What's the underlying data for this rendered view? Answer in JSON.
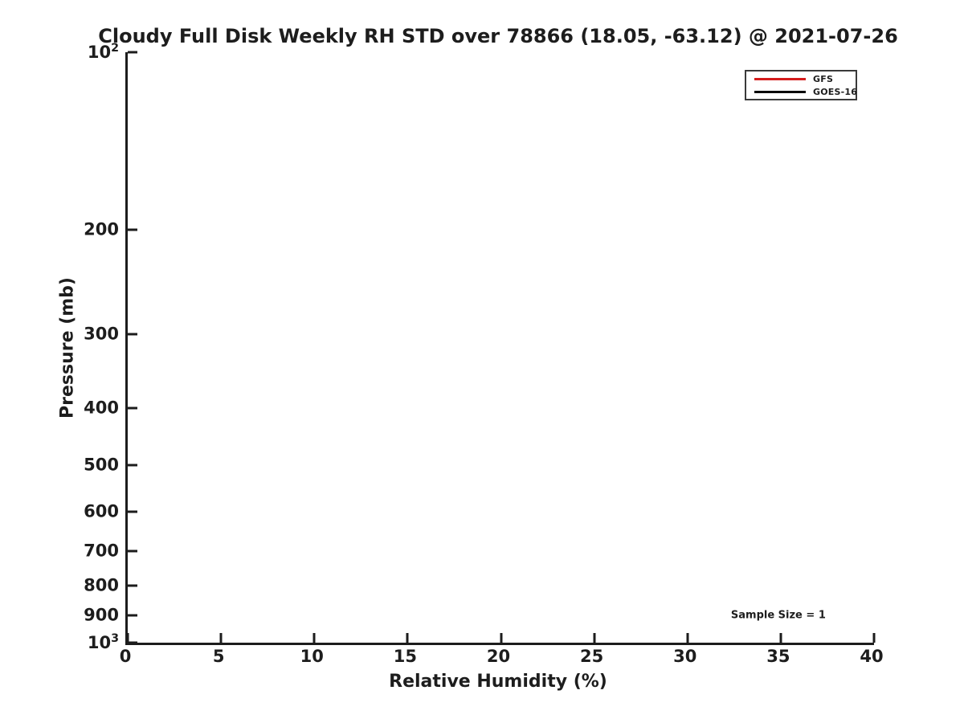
{
  "chart_data": {
    "type": "line",
    "title": "Cloudy Full Disk Weekly RH STD over 78866 (18.05, -63.12) @ 2021-07-26",
    "xlabel": "Relative Humidity (%)",
    "ylabel": "Pressure (mb)",
    "x_axis": {
      "min": 0,
      "max": 40,
      "ticks": [
        0,
        5,
        10,
        15,
        20,
        25,
        30,
        35,
        40
      ]
    },
    "y_axis": {
      "scale": "log10",
      "min": 100,
      "max": 1000,
      "direction": "increasing-downward",
      "ticks": [
        {
          "value": 100,
          "label": "10^2"
        },
        {
          "value": 200,
          "label": "200"
        },
        {
          "value": 300,
          "label": "300"
        },
        {
          "value": 400,
          "label": "400"
        },
        {
          "value": 500,
          "label": "500"
        },
        {
          "value": 600,
          "label": "600"
        },
        {
          "value": 700,
          "label": "700"
        },
        {
          "value": 800,
          "label": "800"
        },
        {
          "value": 900,
          "label": "900"
        },
        {
          "value": 1000,
          "label": "10^3"
        }
      ]
    },
    "grid": false,
    "legend": {
      "position": "top-right",
      "entries": [
        {
          "label": "GFS",
          "color": "#d41c1c"
        },
        {
          "label": "GOES-16",
          "color": "#0a0a0a"
        }
      ]
    },
    "annotations": [
      {
        "text": "Sample Size = 1",
        "x": 35,
        "y": 900
      }
    ],
    "series": [
      {
        "name": "GFS",
        "color": "#d41c1c",
        "points": []
      },
      {
        "name": "GOES-16",
        "color": "#0a0a0a",
        "points": []
      }
    ],
    "colors": {
      "axis": "#1c1c1c",
      "text": "#1d1d1d",
      "background": "#ffffff"
    }
  }
}
